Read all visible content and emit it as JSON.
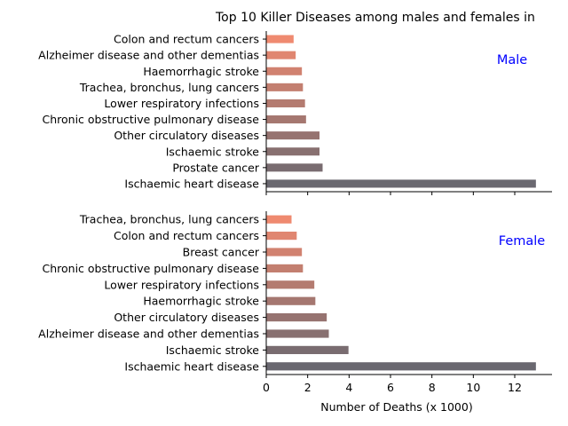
{
  "chart_data": {
    "type": "bar",
    "orientation": "horizontal",
    "title": "Top 10 Killer Diseases among males and females in",
    "xlabel": "Number of Deaths (x 1000)",
    "xlim": [
      0,
      13.8
    ],
    "xticks": [
      "0",
      "2",
      "4",
      "6",
      "8",
      "10",
      "12"
    ],
    "grid": false,
    "bar_color_top": "#ef8a70",
    "bar_color_bottom": "#6a6870",
    "label_color": "#0000ff",
    "panels": [
      {
        "label": "Male",
        "categories": [
          "Colon and rectum cancers",
          "Alzheimer disease and other dementias",
          "Haemorrhagic stroke",
          "Trachea, bronchus, lung cancers",
          "Lower respiratory infections",
          "Chronic obstructive pulmonary disease",
          "Other circulatory diseases",
          "Ischaemic stroke",
          "Prostate cancer",
          "Ischaemic heart disease"
        ],
        "values": [
          1.3,
          1.4,
          1.7,
          1.75,
          1.85,
          1.9,
          2.55,
          2.55,
          2.7,
          13.0
        ]
      },
      {
        "label": "Female",
        "categories": [
          "Trachea, bronchus, lung cancers",
          "Colon and rectum cancers",
          "Breast cancer",
          "Chronic obstructive pulmonary disease",
          "Lower respiratory infections",
          "Haemorrhagic stroke",
          "Other circulatory diseases",
          "Alzheimer disease and other dementias",
          "Ischaemic stroke",
          "Ischaemic heart disease"
        ],
        "values": [
          1.2,
          1.45,
          1.7,
          1.75,
          2.3,
          2.35,
          2.9,
          3.0,
          3.95,
          13.0
        ]
      }
    ]
  }
}
